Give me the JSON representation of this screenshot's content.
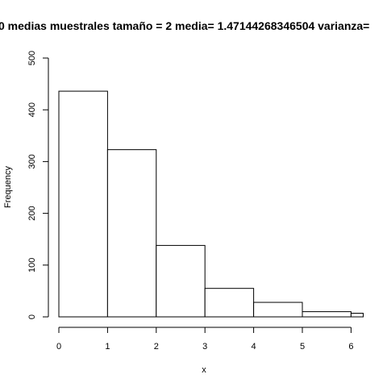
{
  "chart_data": {
    "type": "bar",
    "title": "0 medias muestrales  tamaño =  2 media= 1.47144268346504 varianza=",
    "xlabel": "x",
    "ylabel": "Frequency",
    "xlim": [
      0,
      6.25
    ],
    "ylim": [
      0,
      500
    ],
    "bins": [
      {
        "start": 0,
        "end": 1,
        "value": 436
      },
      {
        "start": 1,
        "end": 2,
        "value": 323
      },
      {
        "start": 2,
        "end": 3,
        "value": 138
      },
      {
        "start": 3,
        "end": 4,
        "value": 55
      },
      {
        "start": 4,
        "end": 5,
        "value": 28
      },
      {
        "start": 5,
        "end": 6,
        "value": 10
      },
      {
        "start": 6,
        "end": 6.25,
        "value": 7
      }
    ],
    "x_ticks": [
      "0",
      "1",
      "2",
      "3",
      "4",
      "5",
      "6"
    ],
    "y_ticks": [
      "0",
      "100",
      "200",
      "300",
      "400",
      "500"
    ],
    "grid": false,
    "legend": "none"
  }
}
